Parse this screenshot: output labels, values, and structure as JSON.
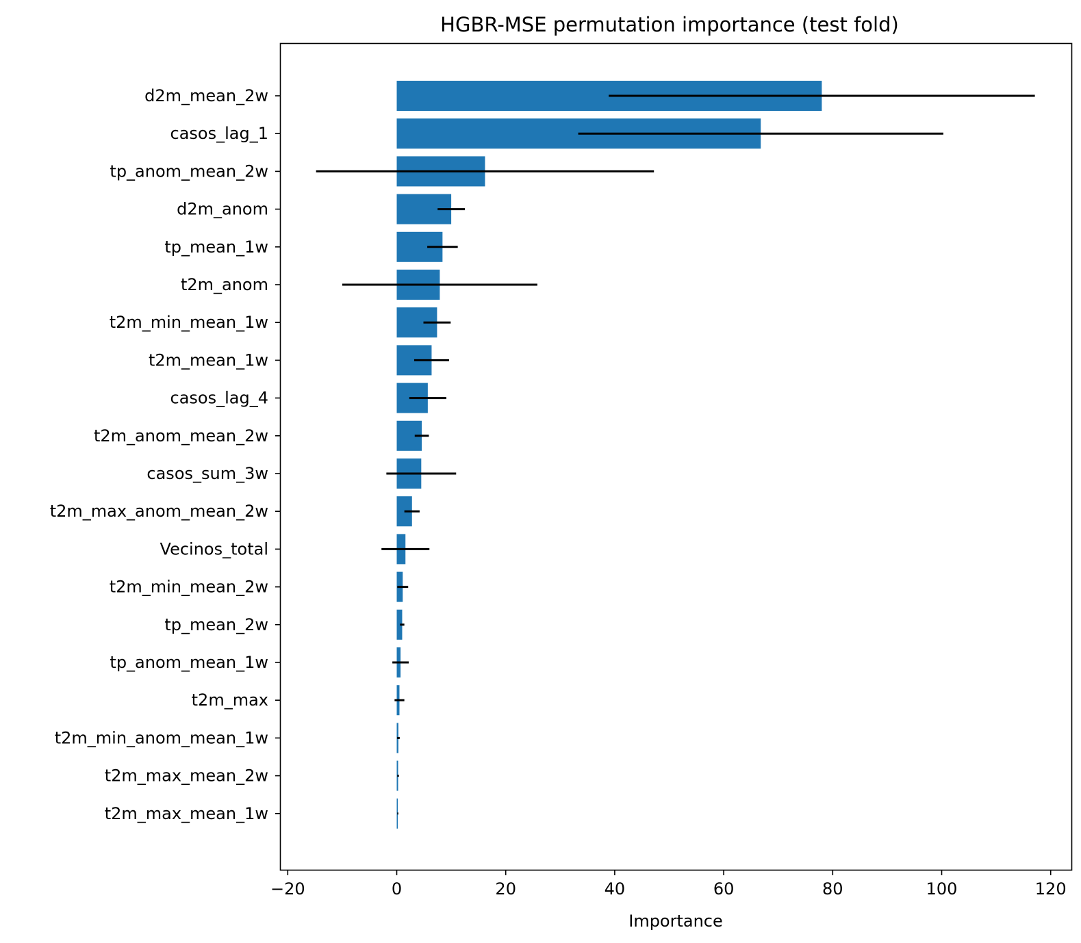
{
  "chart_data": {
    "type": "bar",
    "orientation": "horizontal",
    "title": "HGBR-MSE permutation importance (test fold)",
    "xlabel": "Importance",
    "ylabel": "",
    "xlim": [
      -21,
      121
    ],
    "xticks": [
      -20,
      0,
      20,
      40,
      60,
      80,
      100,
      120
    ],
    "xtick_labels": [
      "−20",
      "0",
      "20",
      "40",
      "60",
      "80",
      "100",
      "120"
    ],
    "grid": false,
    "bar_color": "#1f77b4",
    "errorbar_color": "#000000",
    "categories": [
      "d2m_mean_2w",
      "casos_lag_1",
      "tp_anom_mean_2w",
      "d2m_anom",
      "tp_mean_1w",
      "t2m_anom",
      "t2m_min_mean_1w",
      "t2m_mean_1w",
      "casos_lag_4",
      "t2m_anom_mean_2w",
      "casos_sum_3w",
      "t2m_max_anom_mean_2w",
      "Vecinos_total",
      "t2m_min_mean_2w",
      "tp_mean_2w",
      "tp_anom_mean_1w",
      "t2m_max",
      "t2m_min_anom_mean_1w",
      "t2m_max_mean_2w",
      "t2m_max_mean_1w"
    ],
    "values": [
      78.0,
      66.8,
      16.2,
      10.0,
      8.4,
      7.9,
      7.4,
      6.4,
      5.7,
      4.6,
      4.5,
      2.8,
      1.6,
      1.1,
      1.0,
      0.7,
      0.5,
      0.3,
      0.25,
      0.2
    ],
    "errors": [
      39.1,
      33.5,
      31.0,
      2.5,
      2.8,
      17.9,
      2.5,
      3.2,
      3.4,
      1.3,
      6.4,
      1.4,
      4.4,
      1.0,
      0.4,
      1.5,
      0.9,
      0.25,
      0.15,
      0.1
    ]
  }
}
